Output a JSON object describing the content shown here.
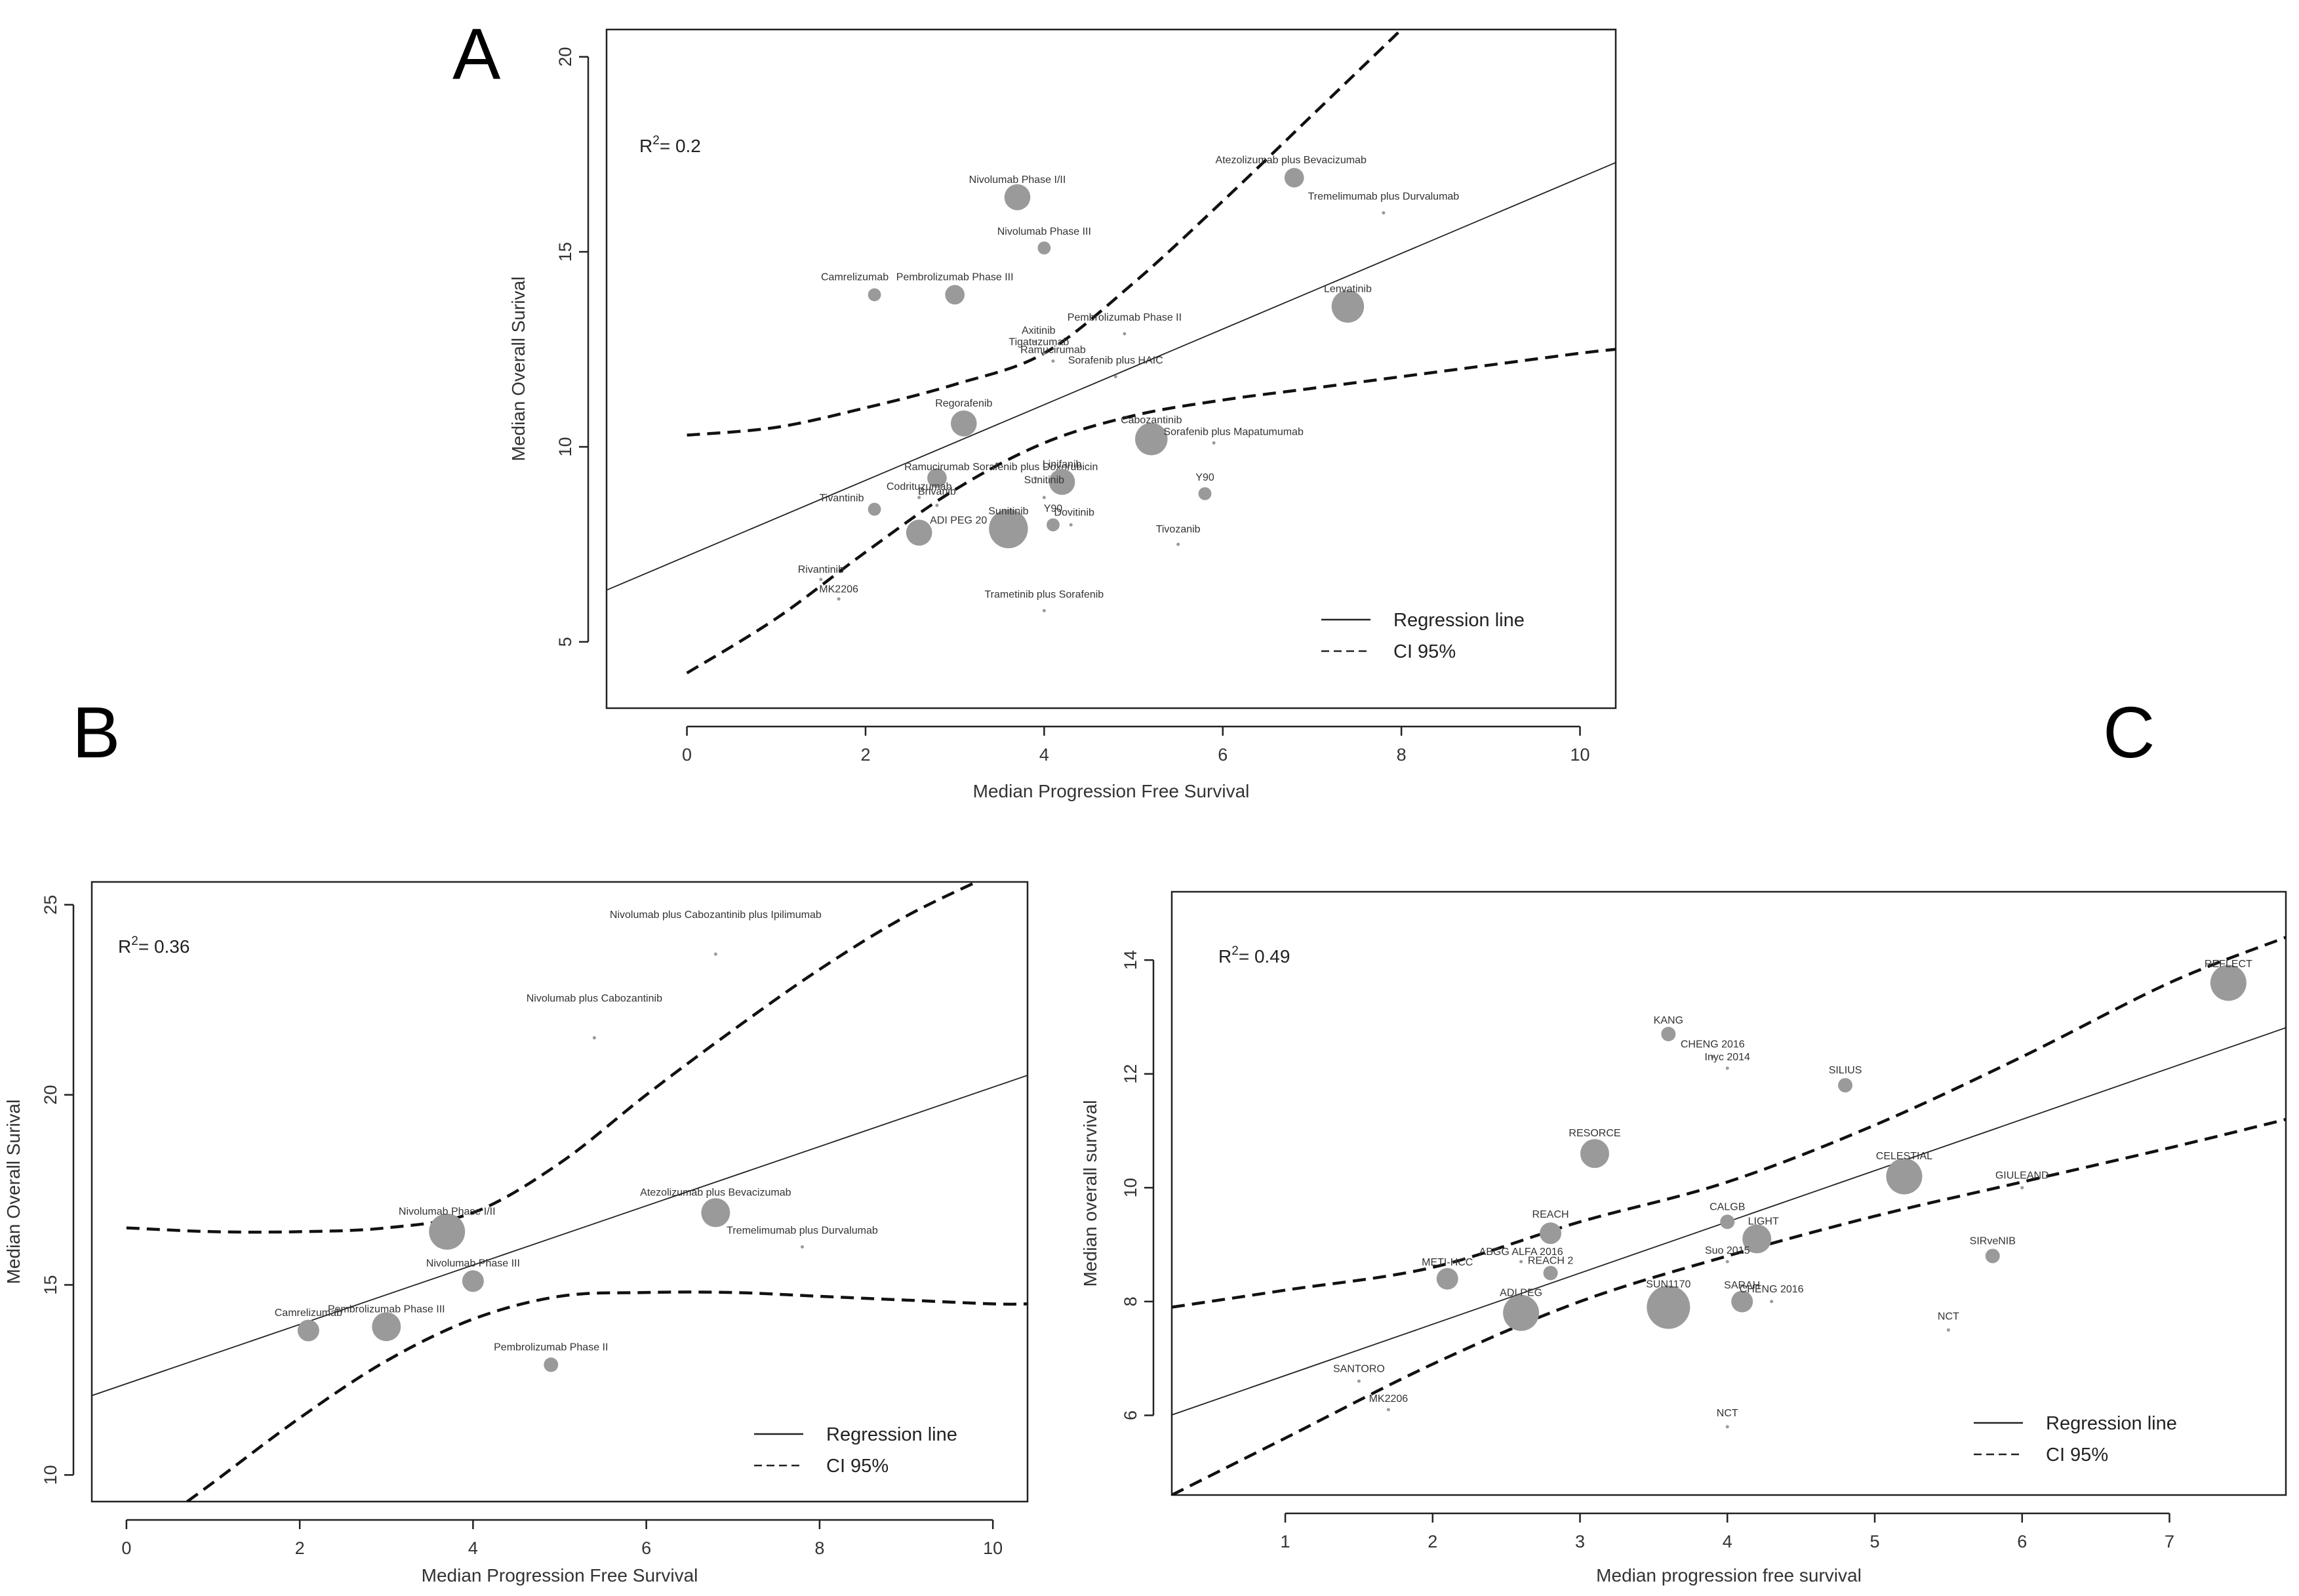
{
  "chart_data": [
    {
      "panel": "A",
      "type": "scatter",
      "xlabel": "Median Progression Free Survival",
      "ylabel": "Median Overall Surival",
      "xlim": [
        -0.9,
        10.4
      ],
      "ylim": [
        3.3,
        20.7
      ],
      "xticks": [
        0,
        2,
        4,
        6,
        8,
        10
      ],
      "yticks": [
        5,
        10,
        15,
        20
      ],
      "r2_label": "R",
      "r2_value": "= 0.2",
      "points": [
        {
          "label": "Nivolumab Phase I/II",
          "x": 3.7,
          "y": 16.4,
          "size": 4
        },
        {
          "label": "Atezolizumab plus Bevacizumab",
          "x": 6.8,
          "y": 16.9,
          "size": 3
        },
        {
          "label": "Tremelimumab plus Durvalumab",
          "x": 7.8,
          "y": 16.0,
          "size": 1
        },
        {
          "label": "Nivolumab Phase III",
          "x": 4.0,
          "y": 15.1,
          "size": 2
        },
        {
          "label": "Camrelizumab",
          "x": 2.1,
          "y": 13.9,
          "size": 2
        },
        {
          "label": "Pembrolizumab Phase III",
          "x": 3.0,
          "y": 13.9,
          "size": 3
        },
        {
          "label": "Lenvatinib",
          "x": 7.4,
          "y": 13.6,
          "size": 5
        },
        {
          "label": "Pembrolizumab Phase II",
          "x": 4.9,
          "y": 12.9,
          "size": 1
        },
        {
          "label": "Axitinib",
          "x": 3.9,
          "y": 12.7,
          "size": 1
        },
        {
          "label": "Tigatuzumab",
          "x": 4.0,
          "y": 12.4,
          "size": 1
        },
        {
          "label": "Ramucirumab",
          "x": 4.1,
          "y": 12.2,
          "size": 1
        },
        {
          "label": "Sorafenib plus HAIC",
          "x": 4.8,
          "y": 11.8,
          "size": 1
        },
        {
          "label": "Regorafenib",
          "x": 3.1,
          "y": 10.6,
          "size": 4
        },
        {
          "label": "Cabozantinib",
          "x": 5.2,
          "y": 10.2,
          "size": 5
        },
        {
          "label": "Sorafenib plus Mapatumumab",
          "x": 5.9,
          "y": 10.1,
          "size": 1
        },
        {
          "label": "Sorafenib plus Doxorubicin",
          "x": 3.9,
          "y": 9.2,
          "size": 1
        },
        {
          "label": "Linifanib",
          "x": 4.2,
          "y": 9.1,
          "size": 4
        },
        {
          "label": "Ramucirumab",
          "x": 2.8,
          "y": 9.2,
          "size": 3
        },
        {
          "label": "Codrituzumab",
          "x": 2.6,
          "y": 8.7,
          "size": 1
        },
        {
          "label": "Brivanib",
          "x": 2.8,
          "y": 8.5,
          "size": 1
        },
        {
          "label": "Sunitinib",
          "x": 4.0,
          "y": 8.7,
          "size": 1
        },
        {
          "label": "Y90",
          "x": 5.8,
          "y": 8.8,
          "size": 2
        },
        {
          "label": "Tivantinib",
          "x": 2.1,
          "y": 8.4,
          "size": 2
        },
        {
          "label": "ADI PEG 20",
          "x": 2.6,
          "y": 7.8,
          "size": 4
        },
        {
          "label": "Sunitinib",
          "x": 3.6,
          "y": 7.9,
          "size": 6
        },
        {
          "label": "Y90",
          "x": 4.1,
          "y": 8.0,
          "size": 2
        },
        {
          "label": "Dovitinib",
          "x": 4.3,
          "y": 8.0,
          "size": 1
        },
        {
          "label": "Tivozanib",
          "x": 5.5,
          "y": 7.5,
          "size": 1
        },
        {
          "label": "Rivantinib",
          "x": 1.5,
          "y": 6.6,
          "size": 1
        },
        {
          "label": "MK2206",
          "x": 1.7,
          "y": 6.1,
          "size": 1
        },
        {
          "label": "Trametinib plus Sorafenib",
          "x": 4.0,
          "y": 5.8,
          "size": 1
        }
      ],
      "regression": {
        "intercept": 7.2,
        "slope": 0.97
      },
      "ci_upper": [
        [
          0,
          10.3
        ],
        [
          1,
          10.5
        ],
        [
          2,
          11.0
        ],
        [
          3,
          11.6
        ],
        [
          4,
          12.4
        ],
        [
          5,
          14.2
        ],
        [
          6,
          16.3
        ],
        [
          7,
          18.5
        ],
        [
          8,
          20.7
        ]
      ],
      "ci_lower": [
        [
          0,
          4.2
        ],
        [
          1,
          5.6
        ],
        [
          2,
          7.3
        ],
        [
          3,
          8.9
        ],
        [
          4,
          10.1
        ],
        [
          5,
          10.8
        ],
        [
          6,
          11.2
        ],
        [
          7,
          11.5
        ],
        [
          8,
          11.8
        ],
        [
          9,
          12.1
        ],
        [
          10,
          12.4
        ],
        [
          10.4,
          12.5
        ]
      ],
      "legend": {
        "regression": "Regression line",
        "ci": "CI 95%"
      }
    },
    {
      "panel": "B",
      "type": "scatter",
      "xlabel": "Median Progression Free Survival",
      "ylabel": "Median Overall Surival",
      "xlim": [
        -0.4,
        10.4
      ],
      "ylim": [
        9.3,
        25.6
      ],
      "xticks": [
        0,
        2,
        4,
        6,
        8,
        10
      ],
      "yticks": [
        10,
        15,
        20,
        25
      ],
      "r2_label": "R",
      "r2_value": "= 0.36",
      "points": [
        {
          "label": "Nivolumab plus Cabozantinib plus Ipilimumab",
          "x": 6.8,
          "y": 23.7,
          "size": 1
        },
        {
          "label": "Nivolumab plus Cabozantinib",
          "x": 5.4,
          "y": 21.5,
          "size": 1
        },
        {
          "label": "Nivolumab Phase I/II",
          "x": 3.7,
          "y": 16.4,
          "size": 5
        },
        {
          "label": "Atezolizumab plus Bevacizumab",
          "x": 6.8,
          "y": 16.9,
          "size": 4
        },
        {
          "label": "Tremelimumab plus Durvalumab",
          "x": 7.8,
          "y": 16.0,
          "size": 1
        },
        {
          "label": "Nivolumab Phase III",
          "x": 4.0,
          "y": 15.1,
          "size": 3
        },
        {
          "label": "Camrelizumab",
          "x": 2.1,
          "y": 13.8,
          "size": 3
        },
        {
          "label": "Pembrolizumab Phase III",
          "x": 3.0,
          "y": 13.9,
          "size": 4
        },
        {
          "label": "Pembrolizumab Phase II",
          "x": 4.9,
          "y": 12.9,
          "size": 2
        }
      ],
      "regression": {
        "intercept": 12.4,
        "slope": 0.78
      },
      "ci_upper": [
        [
          0,
          16.5
        ],
        [
          1,
          16.4
        ],
        [
          2,
          16.4
        ],
        [
          3,
          16.5
        ],
        [
          4,
          16.9
        ],
        [
          5,
          18.2
        ],
        [
          6,
          20.0
        ],
        [
          7,
          21.7
        ],
        [
          8,
          23.3
        ],
        [
          9,
          24.7
        ],
        [
          10,
          25.8
        ]
      ],
      "ci_lower": [
        [
          0.7,
          9.3
        ],
        [
          1,
          9.8
        ],
        [
          2,
          11.5
        ],
        [
          3,
          13.0
        ],
        [
          4,
          14.1
        ],
        [
          5,
          14.7
        ],
        [
          6,
          14.8
        ],
        [
          7,
          14.8
        ],
        [
          8,
          14.7
        ],
        [
          9,
          14.6
        ],
        [
          10,
          14.5
        ],
        [
          10.4,
          14.5
        ]
      ],
      "legend": {
        "regression": "Regression line",
        "ci": "CI 95%"
      }
    },
    {
      "panel": "C",
      "type": "scatter",
      "xlabel": "Median progression free survival",
      "ylabel": "Median overall survival",
      "xlim": [
        0.23,
        7.79
      ],
      "ylim": [
        4.6,
        15.2
      ],
      "xticks": [
        1,
        2,
        3,
        4,
        5,
        6,
        7
      ],
      "yticks": [
        6,
        8,
        10,
        12,
        14
      ],
      "r2_label": "R",
      "r2_value": "= 0.49",
      "points": [
        {
          "label": "REFLECT",
          "x": 7.4,
          "y": 13.6,
          "size": 5
        },
        {
          "label": "KANG",
          "x": 3.6,
          "y": 12.7,
          "size": 2
        },
        {
          "label": "CHENG 2016",
          "x": 3.9,
          "y": 12.3,
          "size": 1
        },
        {
          "label": "Inyc 2014",
          "x": 4.0,
          "y": 12.1,
          "size": 1
        },
        {
          "label": "SILIUS",
          "x": 4.8,
          "y": 11.8,
          "size": 2
        },
        {
          "label": "RESORCE",
          "x": 3.1,
          "y": 10.6,
          "size": 4
        },
        {
          "label": "CELESTIAL",
          "x": 5.2,
          "y": 10.2,
          "size": 5
        },
        {
          "label": "GIULEAND",
          "x": 6.0,
          "y": 10.0,
          "size": 1
        },
        {
          "label": "CALGB",
          "x": 4.0,
          "y": 9.4,
          "size": 2
        },
        {
          "label": "LIGHT",
          "x": 4.2,
          "y": 9.1,
          "size": 4
        },
        {
          "label": "REACH",
          "x": 2.8,
          "y": 9.2,
          "size": 3
        },
        {
          "label": "ABGG ALFA 2016",
          "x": 2.6,
          "y": 8.7,
          "size": 1
        },
        {
          "label": "Suo 2015",
          "x": 4.0,
          "y": 8.7,
          "size": 1
        },
        {
          "label": "REACH 2",
          "x": 2.8,
          "y": 8.5,
          "size": 2
        },
        {
          "label": "SIRveNIB",
          "x": 5.8,
          "y": 8.8,
          "size": 2
        },
        {
          "label": "METI-HCC",
          "x": 2.1,
          "y": 8.4,
          "size": 3
        },
        {
          "label": "SARAH",
          "x": 4.1,
          "y": 8.0,
          "size": 3
        },
        {
          "label": "CHENG 2016",
          "x": 4.3,
          "y": 8.0,
          "size": 1
        },
        {
          "label": "ADI PEG",
          "x": 2.6,
          "y": 7.8,
          "size": 5
        },
        {
          "label": "SUN1170",
          "x": 3.6,
          "y": 7.9,
          "size": 6
        },
        {
          "label": "NCT",
          "x": 5.5,
          "y": 7.5,
          "size": 1
        },
        {
          "label": "SANTORO",
          "x": 1.5,
          "y": 6.6,
          "size": 1
        },
        {
          "label": "MK2206",
          "x": 1.7,
          "y": 6.1,
          "size": 1
        },
        {
          "label": "NCT",
          "x": 4.0,
          "y": 5.8,
          "size": 1
        }
      ],
      "regression": {
        "intercept": 5.8,
        "slope": 0.9
      },
      "ci_upper": [
        [
          0.23,
          7.9
        ],
        [
          1,
          8.2
        ],
        [
          2,
          8.6
        ],
        [
          3,
          9.4
        ],
        [
          4,
          10.1
        ],
        [
          5,
          11.1
        ],
        [
          6,
          12.3
        ],
        [
          7,
          13.6
        ],
        [
          7.79,
          14.4
        ]
      ],
      "ci_lower": [
        [
          0.23,
          4.6
        ],
        [
          1,
          5.6
        ],
        [
          2,
          6.9
        ],
        [
          3,
          8.0
        ],
        [
          4,
          8.8
        ],
        [
          5,
          9.5
        ],
        [
          6,
          10.1
        ],
        [
          7,
          10.7
        ],
        [
          7.79,
          11.2
        ]
      ],
      "legend": {
        "regression": "Regression line",
        "ci": "CI 95%"
      }
    }
  ]
}
